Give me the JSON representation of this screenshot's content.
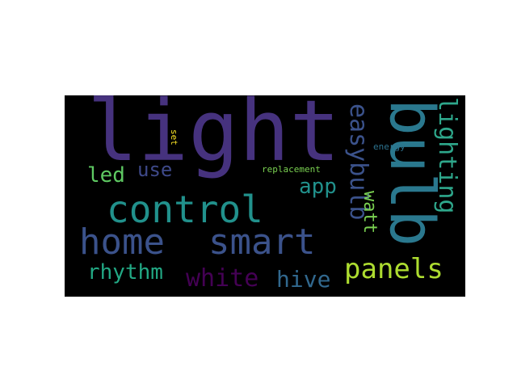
{
  "figure": {
    "words": [
      {
        "text": "light",
        "color": "#46327e"
      },
      {
        "text": "bulb",
        "color": "#2a788e"
      },
      {
        "text": "control",
        "color": "#21918c"
      },
      {
        "text": "home",
        "color": "#3b528b"
      },
      {
        "text": "smart",
        "color": "#3b528b"
      },
      {
        "text": "lighting",
        "color": "#2ea78b"
      },
      {
        "text": "easybulb",
        "color": "#3b528b"
      },
      {
        "text": "watt",
        "color": "#7ad151"
      },
      {
        "text": "panels",
        "color": "#addc30"
      },
      {
        "text": "rhythm",
        "color": "#22a884"
      },
      {
        "text": "white",
        "color": "#440154"
      },
      {
        "text": "hive",
        "color": "#31688e"
      },
      {
        "text": "led",
        "color": "#5ec962"
      },
      {
        "text": "use",
        "color": "#3e4989"
      },
      {
        "text": "app",
        "color": "#21918c"
      },
      {
        "text": "replacement",
        "color": "#7ad151"
      },
      {
        "text": "energy",
        "color": "#2c728e"
      },
      {
        "text": "set",
        "color": "#fde725"
      }
    ]
  }
}
